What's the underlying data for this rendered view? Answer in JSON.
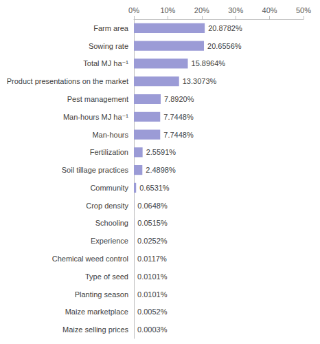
{
  "chart_data": {
    "type": "bar",
    "orientation": "horizontal",
    "categories": [
      "Farm area",
      "Sowing rate",
      "Total MJ ha⁻¹",
      "Product presentations on the market",
      "Pest management",
      "Man-hours MJ ha⁻¹",
      "Man-hours",
      "Fertilization",
      "Soil tillage practices",
      "Community",
      "Crop density",
      "Schooling",
      "Experience",
      "Chemical weed control",
      "Type of seed",
      "Planting season",
      "Maize marketplace",
      "Maize selling prices"
    ],
    "values": [
      20.8782,
      20.6556,
      15.8964,
      13.3073,
      7.892,
      7.7448,
      7.7448,
      2.5591,
      2.4898,
      0.6531,
      0.0648,
      0.0515,
      0.0252,
      0.0117,
      0.0101,
      0.0101,
      0.0052,
      0.0003
    ],
    "value_labels": [
      "20.8782%",
      "20.6556%",
      "15.8964%",
      "13.3073%",
      "7.8920%",
      "7.7448%",
      "7.7448%",
      "2.5591%",
      "2.4898%",
      "0.6531%",
      "0.0648%",
      "0.0515%",
      "0.0252%",
      "0.0117%",
      "0.0101%",
      "0.0101%",
      "0.0052%",
      "0.0003%"
    ],
    "data_labels": true,
    "color": "#9b9bd6",
    "xlim": [
      0,
      50
    ],
    "xticks": [
      {
        "value": 0,
        "label": "0%"
      },
      {
        "value": 10,
        "label": "10%"
      },
      {
        "value": 20,
        "label": "20%"
      },
      {
        "value": 30,
        "label": "30%"
      },
      {
        "value": 40,
        "label": "40%"
      },
      {
        "value": 50,
        "label": "50%"
      }
    ],
    "grid": false
  }
}
